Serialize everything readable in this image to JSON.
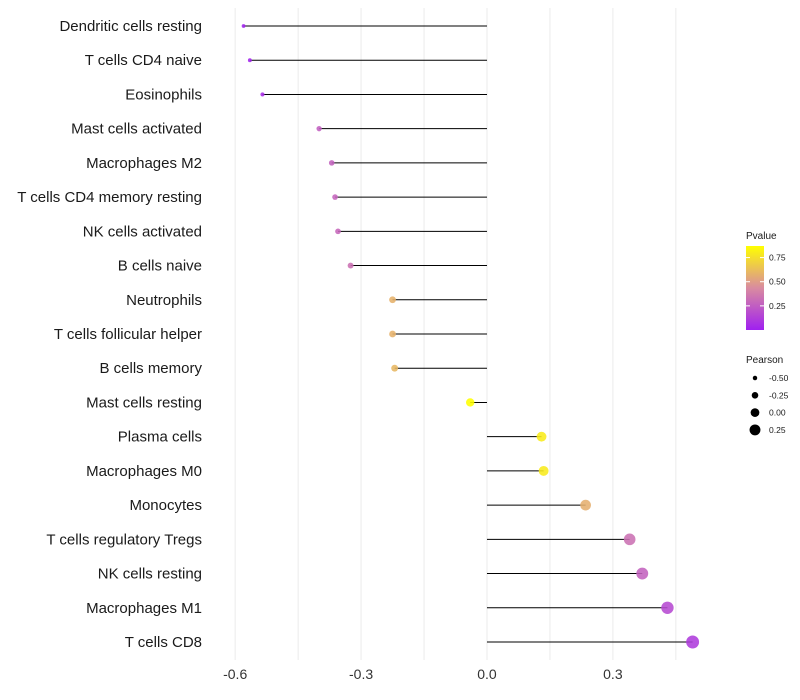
{
  "chart_data": {
    "type": "lollipop",
    "title": "",
    "xlabel": "",
    "ylabel": "",
    "xlim": [
      -0.66,
      0.56
    ],
    "x_ticks": [
      -0.6,
      -0.3,
      0.0,
      0.3
    ],
    "x_tick_labels": [
      "-0.6",
      "-0.3",
      "0.0",
      "0.3"
    ],
    "grid": true,
    "categories": [
      "Dendritic cells resting",
      "T cells CD4 naive",
      "Eosinophils",
      "Mast cells activated",
      "Macrophages M2",
      "T cells CD4 memory resting",
      "NK cells activated",
      "B cells naive",
      "Neutrophils",
      "T cells follicular helper",
      "B cells memory",
      "Mast cells resting",
      "Plasma cells",
      "Macrophages M0",
      "Monocytes",
      "T cells regulatory  Tregs ",
      "NK cells resting",
      "Macrophages M1",
      "T cells CD8"
    ],
    "pearson": [
      -0.58,
      -0.565,
      -0.535,
      -0.4,
      -0.37,
      -0.362,
      -0.355,
      -0.325,
      -0.225,
      -0.225,
      -0.22,
      -0.04,
      0.13,
      0.135,
      0.235,
      0.34,
      0.37,
      0.43,
      0.49
    ],
    "pvalue": [
      0.01,
      0.015,
      0.05,
      0.26,
      0.27,
      0.28,
      0.29,
      0.33,
      0.58,
      0.58,
      0.6,
      0.99,
      0.8,
      0.79,
      0.57,
      0.33,
      0.27,
      0.17,
      0.11
    ],
    "legend_color": {
      "title": "Pvalue",
      "range": [
        0.0,
        0.87
      ],
      "ticks": [
        0.25,
        0.5,
        0.75
      ],
      "tick_labels": [
        "0.25",
        "0.50",
        "0.75"
      ],
      "low_color": "#a020f0",
      "mid_color": "#d98ba0",
      "high_color": "#ffff00",
      "position": "right"
    },
    "legend_size": {
      "title": "Pearson",
      "values": [
        -0.5,
        -0.25,
        0.0,
        0.25
      ],
      "labels": [
        "-0.50",
        "-0.25",
        "0.00",
        "0.25"
      ],
      "position": "right"
    }
  }
}
